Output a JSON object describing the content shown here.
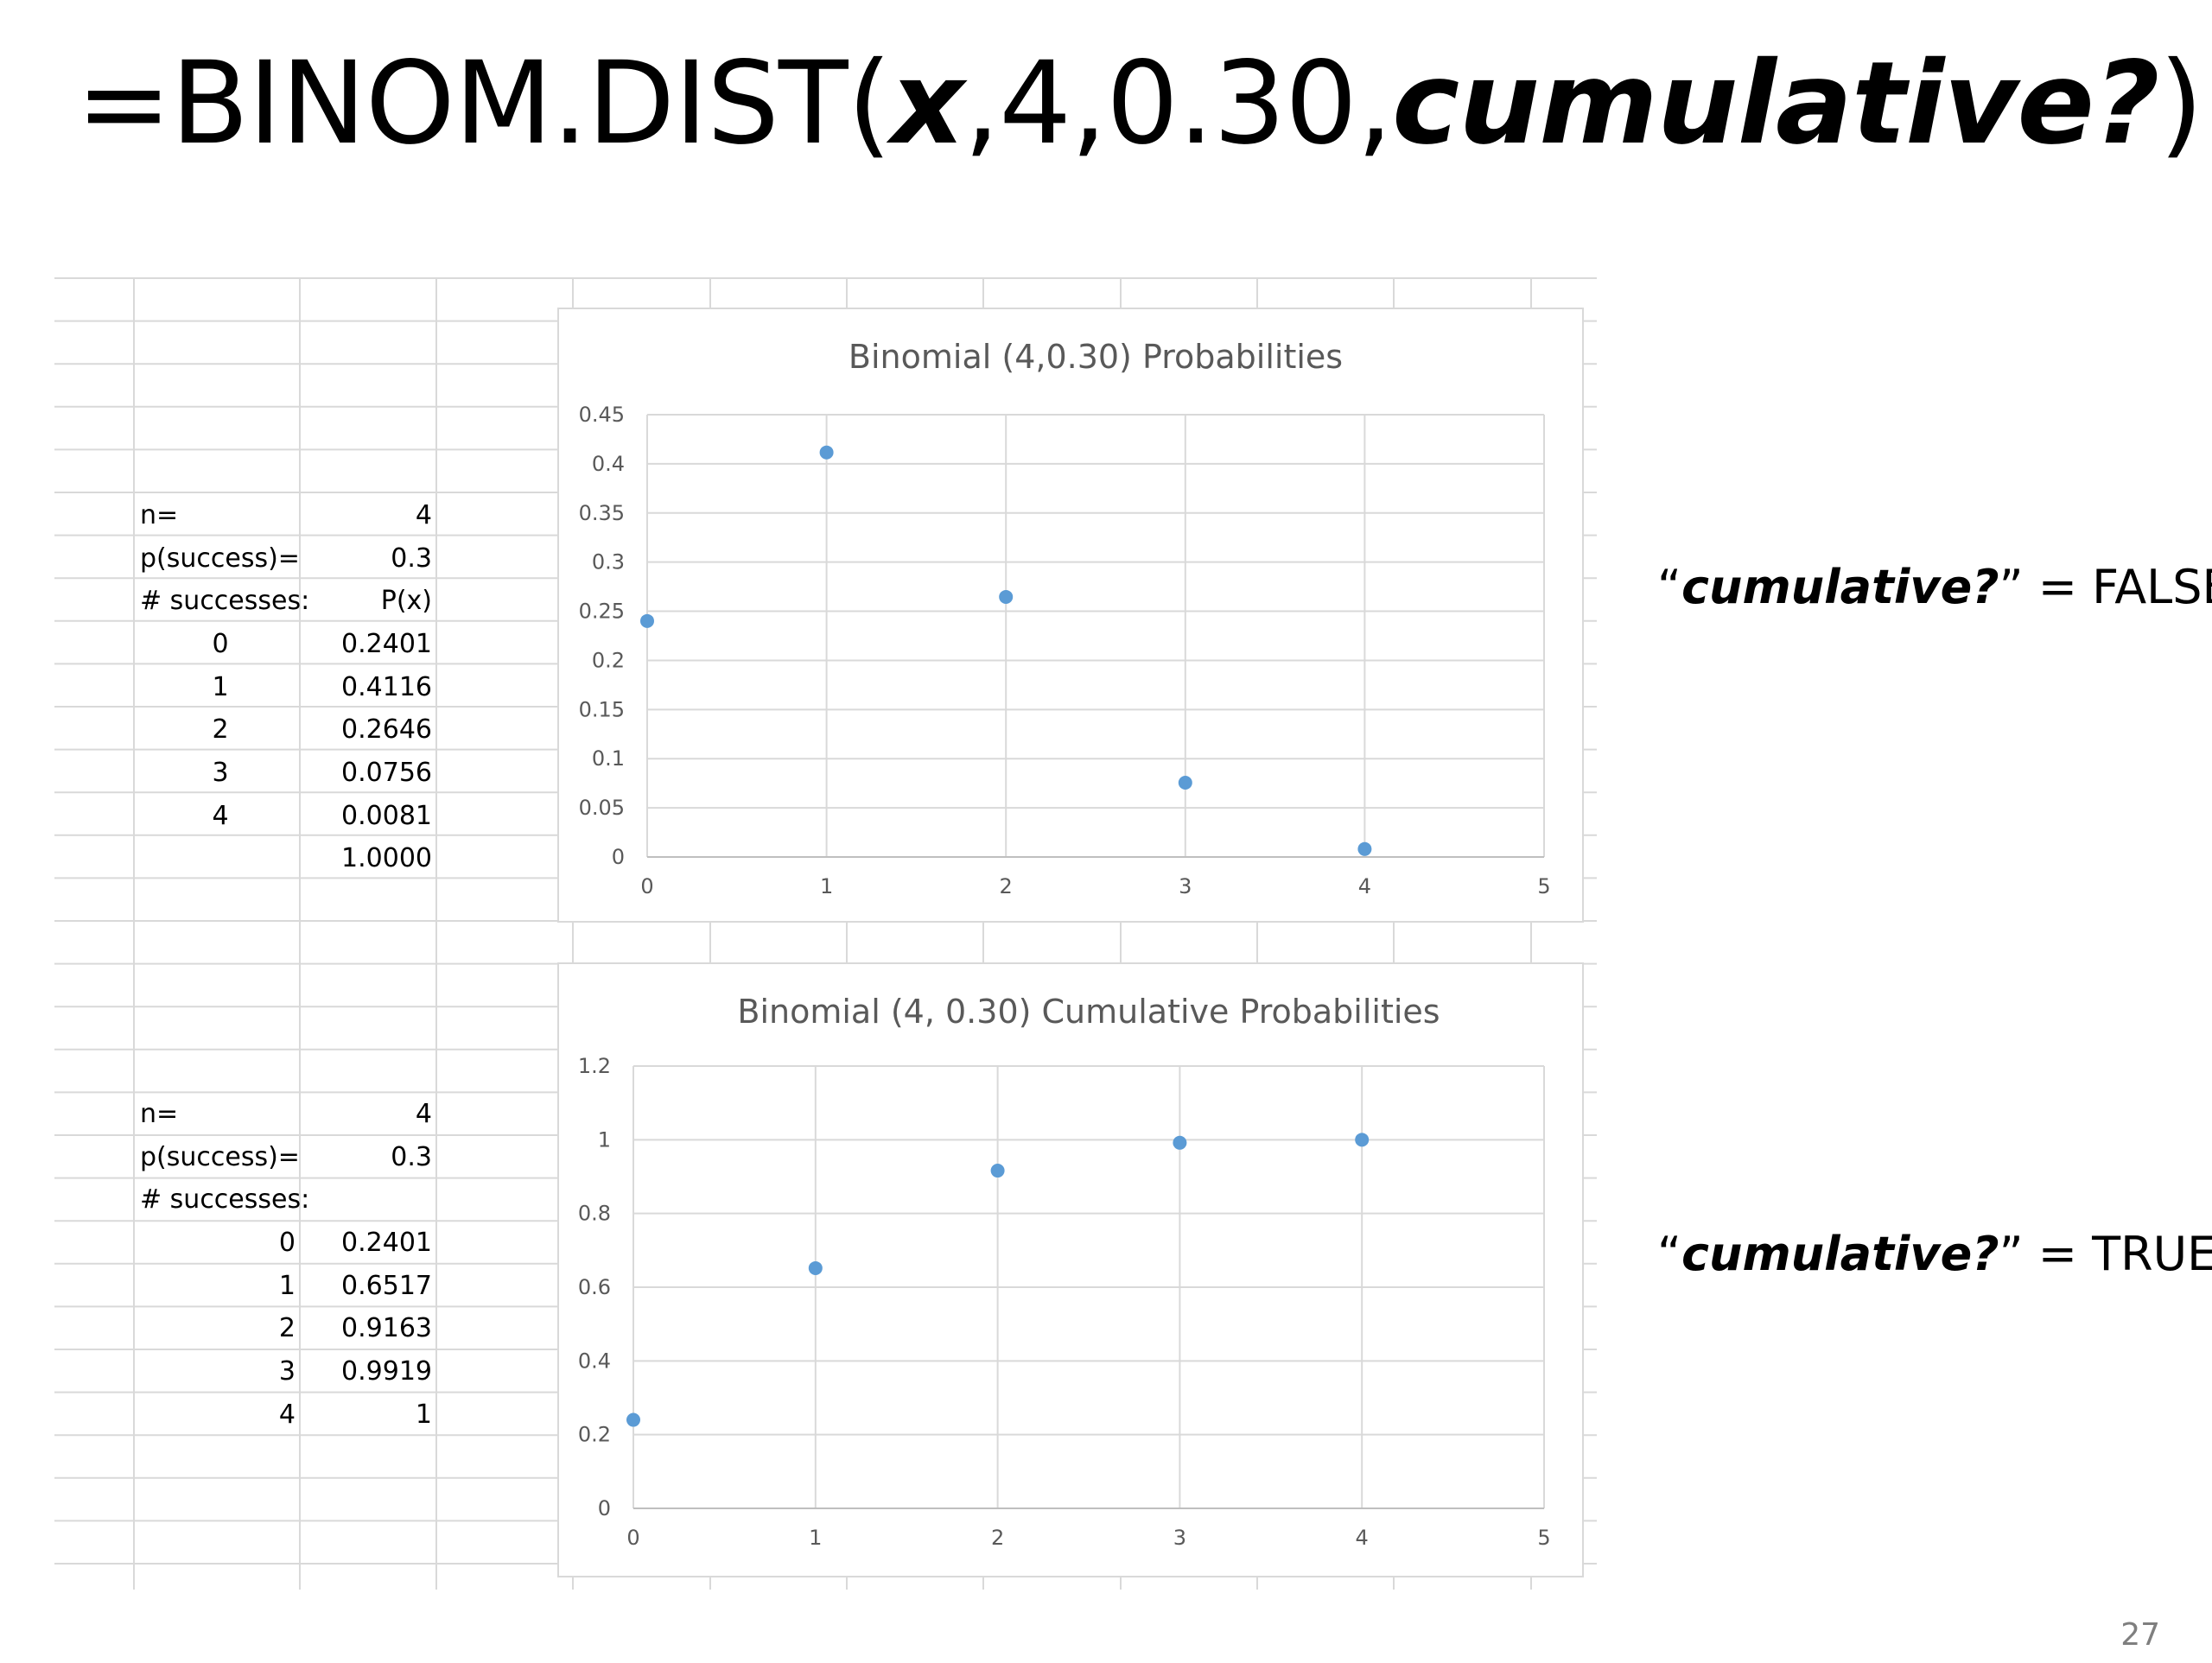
{
  "title": {
    "prefix": "=BINOM.DIST(",
    "arg_x": "x",
    "args_mid": ",4,0.30,",
    "arg_cumulative": "cumulative?",
    "suffix": ")"
  },
  "tables": [
    {
      "n_label": "n=",
      "n_value": "4",
      "p_label": "p(success)=",
      "p_value": "0.3",
      "successes_label": "# successes:",
      "px_header": "P(x)",
      "rows": [
        {
          "k": "0",
          "value": "0.2401"
        },
        {
          "k": "1",
          "value": "0.4116"
        },
        {
          "k": "2",
          "value": "0.2646"
        },
        {
          "k": "3",
          "value": "0.0756"
        },
        {
          "k": "4",
          "value": "0.0081"
        }
      ],
      "total": "1.0000"
    },
    {
      "n_label": "n=",
      "n_value": "4",
      "p_label": "p(success)=",
      "p_value": "0.3",
      "successes_label": "# successes:",
      "rows": [
        {
          "k": "0",
          "value": "0.2401"
        },
        {
          "k": "1",
          "value": "0.6517"
        },
        {
          "k": "2",
          "value": "0.9163"
        },
        {
          "k": "3",
          "value": "0.9919"
        },
        {
          "k": "4",
          "value": "1"
        }
      ]
    }
  ],
  "side_labels": [
    {
      "open_quote": "“",
      "term": "cumulative?",
      "rest": "” = FALSE"
    },
    {
      "open_quote": "“",
      "term": "cumulative?",
      "rest": "” = TRUE"
    }
  ],
  "page_number": "27",
  "colors": {
    "marker": "#5b9bd5",
    "gridline": "#d9d9d9",
    "axis_text": "#595959",
    "title_text": "#595959"
  },
  "chart_data": [
    {
      "type": "scatter",
      "title": "Binomial (4,0.30) Probabilities",
      "x": [
        0,
        1,
        2,
        3,
        4
      ],
      "y": [
        0.2401,
        0.4116,
        0.2646,
        0.0756,
        0.0081
      ],
      "xlim": [
        0,
        5
      ],
      "ylim": [
        0,
        0.45
      ],
      "xticks": [
        "0",
        "1",
        "2",
        "3",
        "4",
        "5"
      ],
      "yticks": [
        "0",
        "0.05",
        "0.1",
        "0.15",
        "0.2",
        "0.25",
        "0.3",
        "0.35",
        "0.4",
        "0.45"
      ],
      "grid": true,
      "legend": "none"
    },
    {
      "type": "scatter",
      "title": "Binomial (4, 0.30) Cumulative Probabilities",
      "x": [
        0,
        1,
        2,
        3,
        4
      ],
      "y": [
        0.2401,
        0.6517,
        0.9163,
        0.9919,
        1
      ],
      "xlim": [
        0,
        5
      ],
      "ylim": [
        0,
        1.2
      ],
      "xticks": [
        "0",
        "1",
        "2",
        "3",
        "4",
        "5"
      ],
      "yticks": [
        "0",
        "0.2",
        "0.4",
        "0.6",
        "0.8",
        "1",
        "1.2"
      ],
      "grid": true,
      "legend": "none"
    }
  ]
}
